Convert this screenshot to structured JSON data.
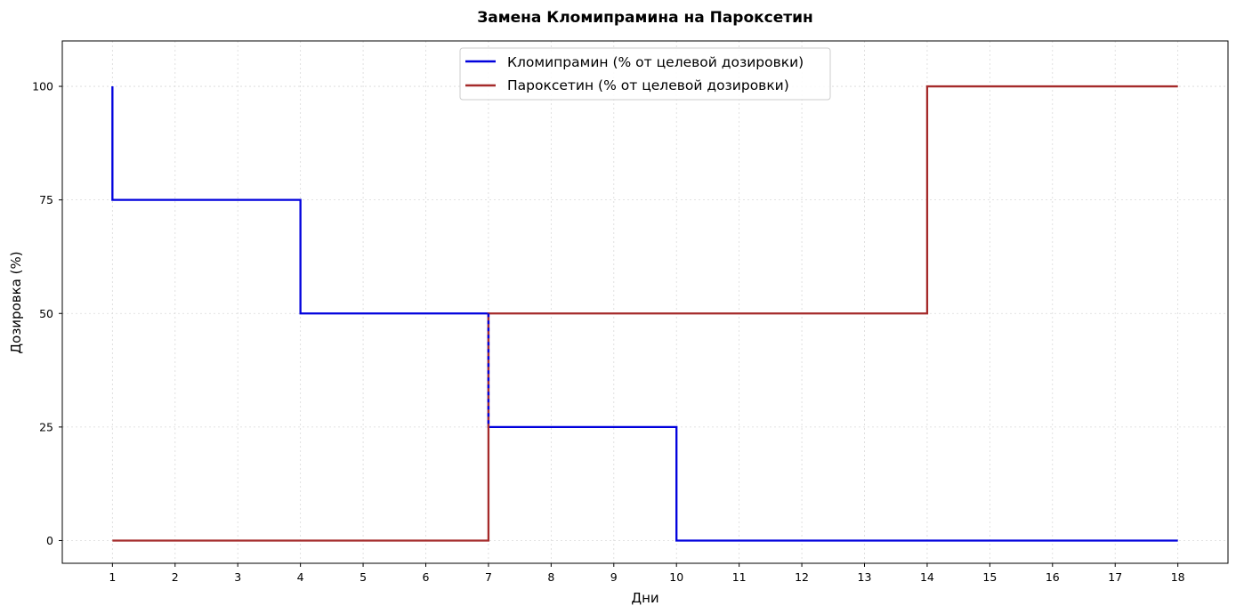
{
  "chart_data": {
    "type": "line",
    "step": "post",
    "title": "Замена Кломипрамина на Пароксетин",
    "xlabel": "Дни",
    "ylabel": "Дозировка (%)",
    "xlim": [
      0.2,
      18.8
    ],
    "ylim": [
      -5,
      110
    ],
    "xticks": [
      1,
      2,
      3,
      4,
      5,
      6,
      7,
      8,
      9,
      10,
      11,
      12,
      13,
      14,
      15,
      16,
      17,
      18
    ],
    "yticks": [
      0,
      25,
      50,
      75,
      100
    ],
    "grid": true,
    "legend_position": "top-center",
    "series": [
      {
        "name": "Кломипрамин (% от целевой дозировки)",
        "color": "#0000dd",
        "x": [
          1,
          1,
          4,
          7,
          10,
          18
        ],
        "y": [
          100,
          75,
          50,
          25,
          0,
          0
        ]
      },
      {
        "name": "Пароксетин (% от целевой дозировки)",
        "color": "#a52a2a",
        "x": [
          1,
          7,
          14,
          18
        ],
        "y": [
          0,
          50,
          100,
          100
        ]
      }
    ]
  }
}
